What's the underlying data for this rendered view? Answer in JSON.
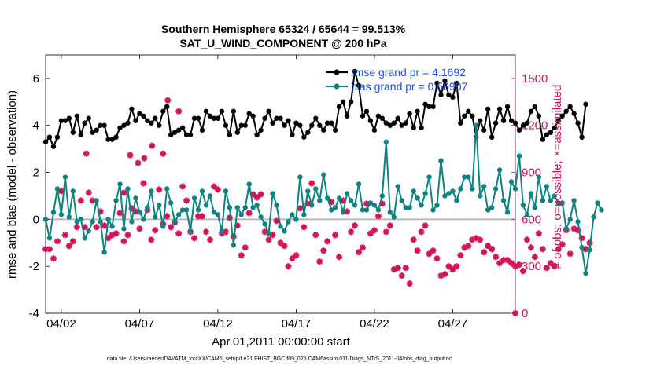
{
  "colors": {
    "rmse": "#000000",
    "bias": "#0f8282",
    "obs": "#d6125a",
    "zero_line": "#b8b8b8",
    "legend_text": "#1f4fe0",
    "right_axis": "#d6125a"
  },
  "chart_data": {
    "type": "line",
    "title": "Southern Hemisphere 65324 / 65644 = 99.513%",
    "subtitle": "SAT_U_WIND_COMPONENT @ 200 hPa",
    "xlabel": "Apr.01,2011 00:00:00 start",
    "ylabel": "rmse and bias (model - observation)",
    "y2label": "# of obs: o=possible; ×=assimilated",
    "footer": "data file: /Users/raeder/DAI/ATM_forcXX/CAM6_setup/f.e21.FHIST_BGC.f09_025.CAM6assim.011/Diags_NTrS_2011-04/obs_diag_output.nc",
    "xlim": [
      1.0,
      31.0
    ],
    "ylim": [
      -4,
      7
    ],
    "y2lim": [
      0,
      1650
    ],
    "xticks": [
      {
        "day": 2,
        "label": "04/02"
      },
      {
        "day": 7,
        "label": "04/07"
      },
      {
        "day": 12,
        "label": "04/12"
      },
      {
        "day": 17,
        "label": "04/17"
      },
      {
        "day": 22,
        "label": "04/22"
      },
      {
        "day": 27,
        "label": "04/27"
      }
    ],
    "yticks": [
      {
        "v": -4,
        "label": "-4"
      },
      {
        "v": -2,
        "label": "-2"
      },
      {
        "v": 0,
        "label": "0"
      },
      {
        "v": 2,
        "label": "2"
      },
      {
        "v": 4,
        "label": "4"
      },
      {
        "v": 6,
        "label": "6"
      }
    ],
    "y2ticks": [
      {
        "v": 0,
        "label": "0"
      },
      {
        "v": 300,
        "label": "300"
      },
      {
        "v": 600,
        "label": "600"
      },
      {
        "v": 900,
        "label": "900"
      },
      {
        "v": 1200,
        "label": "1200"
      },
      {
        "v": 1500,
        "label": "1500"
      }
    ],
    "legend": [
      "rmse grand pr = 4.1692",
      "bias grand pr = 0.50907"
    ],
    "x_start": 1.0,
    "x_step": 0.25,
    "series": [
      {
        "name": "rmse grand pr = 4.1692",
        "axis": "left",
        "values": [
          3.3,
          3.5,
          3.1,
          3.5,
          4.2,
          4.2,
          4.3,
          3.7,
          4.4,
          3.6,
          4.1,
          4.3,
          3.7,
          3.8,
          4.0,
          4.0,
          3.4,
          3.4,
          3.5,
          3.9,
          4.0,
          4.1,
          4.7,
          4.2,
          4.5,
          4.4,
          4.2,
          4.1,
          4.3,
          4.0,
          4.6,
          4.8,
          3.6,
          3.7,
          3.8,
          3.9,
          3.6,
          3.6,
          4.3,
          4.3,
          3.8,
          4.6,
          4.4,
          4.3,
          4.3,
          4.6,
          4.0,
          3.6,
          4.6,
          3.7,
          4.0,
          4.0,
          4.5,
          4.4,
          3.6,
          3.8,
          4.3,
          4.6,
          4.1,
          4.3,
          4.3,
          4.0,
          4.2,
          3.6,
          4.1,
          4.0,
          3.5,
          3.7,
          4.0,
          4.3,
          4.0,
          3.8,
          4.1,
          4.1,
          3.8,
          4.8,
          5.0,
          4.4,
          5.0,
          6.3,
          5.7,
          4.4,
          4.6,
          4.2,
          3.8,
          4.4,
          4.3,
          4.1,
          4.0,
          4.1,
          4.3,
          4.0,
          4.1,
          4.5,
          3.9,
          4.6,
          3.9,
          4.9,
          4.8,
          4.8,
          5.8,
          5.3,
          5.9,
          5.3,
          5.2,
          5.8,
          4.1,
          4.4,
          4.6,
          4.4,
          3.5,
          4.2,
          3.8,
          4.7,
          3.5,
          4.1,
          4.7,
          4.2,
          4.8,
          4.2,
          4.1,
          3.8,
          4.0,
          4.1,
          4.6,
          4.8,
          4.4,
          3.4,
          3.6,
          3.7,
          3.9,
          4.2,
          4.4,
          4.6,
          4.8,
          4.5,
          4.1,
          3.5,
          4.9
        ]
      },
      {
        "name": "bias grand pr = 0.50907",
        "axis": "left",
        "values": [
          0.0,
          -0.8,
          0.3,
          1.3,
          0.2,
          1.8,
          0.1,
          1.2,
          -0.1,
          0.0,
          -0.8,
          -0.5,
          -0.1,
          0.8,
          -0.1,
          -1.4,
          0.0,
          -0.3,
          0.8,
          1.5,
          -0.4,
          1.3,
          -0.1,
          0.9,
          0.3,
          0.0,
          0.5,
          1.2,
          0.1,
          0.6,
          -0.3,
          1.3,
          0.7,
          -0.1,
          0.2,
          0.4,
          0.4,
          -0.5,
          0.9,
          0.4,
          1.2,
          0.6,
          1.0,
          0.3,
          0.2,
          -0.5,
          1.2,
          0.5,
          -1.1,
          0.5,
          0.2,
          0.5,
          1.5,
          0.5,
          0.6,
          0.1,
          -0.2,
          -0.6,
          1.1,
          0.6,
          -0.3,
          -0.5,
          -0.1,
          0.2,
          0.0,
          1.8,
          0.2,
          1.2,
          0.6,
          1.3,
          0.8,
          1.9,
          0.9,
          0.4,
          0.5,
          0.9,
          0.3,
          1.1,
          0.8,
          0.6,
          1.5,
          0.4,
          0.4,
          0.7,
          0.6,
          0.4,
          1.0,
          3.3,
          0.3,
          0.1,
          1.4,
          0.8,
          0.5,
          0.5,
          1.2,
          0.9,
          0.6,
          1.1,
          1.8,
          0.4,
          0.6,
          2.5,
          1.0,
          1.1,
          1.2,
          0.8,
          1.3,
          1.8,
          1.8,
          1.3,
          4.0,
          1.0,
          1.4,
          0.4,
          0.5,
          1.3,
          2.1,
          0.8,
          0.3,
          1.6,
          1.3,
          2.7,
          0.6,
          0.2,
          1.1,
          0.5,
          1.8,
          0.8,
          1.4,
          0.8,
          1.0,
          0.7,
          0.7,
          -0.4,
          0.0,
          0.8,
          -0.1,
          -1.2,
          -2.3,
          -1.3,
          0.1,
          0.7,
          0.4
        ]
      },
      {
        "name": "obs assimilated",
        "axis": "right",
        "values": [
          410,
          410,
          350,
          460,
          780,
          500,
          430,
          460,
          550,
          720,
          550,
          770,
          720,
          550,
          650,
          560,
          480,
          500,
          510,
          640,
          460,
          500,
          670,
          650,
          540,
          830,
          660,
          470,
          530,
          790,
          570,
          620,
          550,
          580,
          510,
          810,
          720,
          520,
          480,
          620,
          620,
          520,
          470,
          810,
          790,
          510,
          520,
          610,
          490,
          560,
          370,
          420,
          640,
          760,
          740,
          760,
          520,
          470,
          500,
          590,
          450,
          430,
          300,
          350,
          370,
          670,
          550,
          700,
          830,
          500,
          330,
          400,
          460,
          710,
          500,
          360,
          720,
          650,
          520,
          560,
          390,
          420,
          700,
          510,
          530,
          620,
          700,
          520,
          560,
          280,
          290,
          240,
          290,
          190,
          470,
          400,
          520,
          560,
          380,
          400,
          350,
          240,
          250,
          300,
          280,
          300,
          370,
          420,
          430,
          470,
          480,
          470,
          390,
          430,
          410,
          360,
          320,
          340,
          340,
          320,
          300,
          310,
          270,
          470,
          420,
          360,
          510,
          410,
          290,
          320,
          300,
          410,
          440,
          530,
          380,
          540,
          530,
          480,
          410,
          450
        ]
      }
    ]
  },
  "extra_obs": [
    {
      "day": 6.4,
      "v": 1010
    },
    {
      "day": 6.9,
      "v": 960
    },
    {
      "day": 7.3,
      "v": 990
    },
    {
      "day": 7.8,
      "v": 1070
    },
    {
      "day": 8.5,
      "v": 1020
    },
    {
      "day": 8.8,
      "v": 1360
    },
    {
      "day": 9.5,
      "v": 1290
    },
    {
      "day": 6.0,
      "v": 770
    },
    {
      "day": 3.6,
      "v": 1020
    }
  ]
}
